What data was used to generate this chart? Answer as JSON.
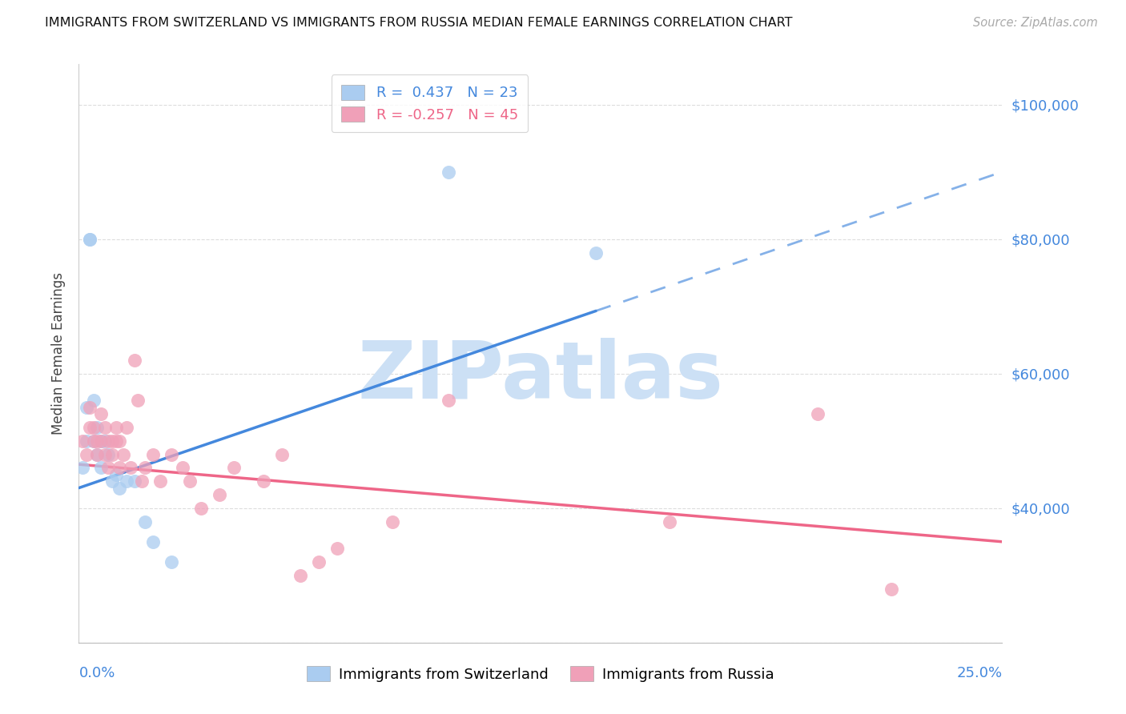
{
  "title": "IMMIGRANTS FROM SWITZERLAND VS IMMIGRANTS FROM RUSSIA MEDIAN FEMALE EARNINGS CORRELATION CHART",
  "source": "Source: ZipAtlas.com",
  "ylabel": "Median Female Earnings",
  "yticks": [
    20000,
    40000,
    60000,
    80000,
    100000
  ],
  "ytick_labels": [
    "",
    "$40,000",
    "$60,000",
    "$80,000",
    "$100,000"
  ],
  "xmin": 0.0,
  "xmax": 0.25,
  "ymin": 20000,
  "ymax": 106000,
  "color_blue": "#aaccf0",
  "color_pink": "#f0a0b8",
  "color_trend_blue": "#4488dd",
  "color_trend_pink": "#ee6688",
  "color_axis": "#4488dd",
  "watermark": "ZIPatlas",
  "watermark_color": "#cce0f5",
  "swiss_x": [
    0.001,
    0.002,
    0.002,
    0.003,
    0.003,
    0.004,
    0.004,
    0.005,
    0.005,
    0.006,
    0.006,
    0.007,
    0.008,
    0.009,
    0.01,
    0.011,
    0.013,
    0.015,
    0.018,
    0.02,
    0.025,
    0.1,
    0.14
  ],
  "swiss_y": [
    46000,
    55000,
    50000,
    80000,
    80000,
    56000,
    50000,
    52000,
    48000,
    50000,
    46000,
    50000,
    48000,
    44000,
    45000,
    43000,
    44000,
    44000,
    38000,
    35000,
    32000,
    90000,
    78000
  ],
  "russia_x": [
    0.001,
    0.002,
    0.003,
    0.003,
    0.004,
    0.004,
    0.005,
    0.005,
    0.006,
    0.006,
    0.007,
    0.007,
    0.008,
    0.008,
    0.009,
    0.009,
    0.01,
    0.01,
    0.011,
    0.011,
    0.012,
    0.013,
    0.014,
    0.015,
    0.016,
    0.017,
    0.018,
    0.02,
    0.022,
    0.025,
    0.028,
    0.03,
    0.033,
    0.038,
    0.042,
    0.05,
    0.055,
    0.06,
    0.065,
    0.07,
    0.085,
    0.1,
    0.16,
    0.2,
    0.22
  ],
  "russia_y": [
    50000,
    48000,
    52000,
    55000,
    50000,
    52000,
    48000,
    50000,
    54000,
    50000,
    52000,
    48000,
    50000,
    46000,
    50000,
    48000,
    50000,
    52000,
    46000,
    50000,
    48000,
    52000,
    46000,
    62000,
    56000,
    44000,
    46000,
    48000,
    44000,
    48000,
    46000,
    44000,
    40000,
    42000,
    46000,
    44000,
    48000,
    30000,
    32000,
    34000,
    38000,
    56000,
    38000,
    54000,
    28000
  ],
  "trend_blue_x0": 0.0,
  "trend_blue_y0": 43000,
  "trend_blue_x1": 0.25,
  "trend_blue_y1": 90000,
  "trend_blue_solid_end": 0.14,
  "trend_pink_x0": 0.0,
  "trend_pink_y0": 46500,
  "trend_pink_x1": 0.25,
  "trend_pink_y1": 35000
}
